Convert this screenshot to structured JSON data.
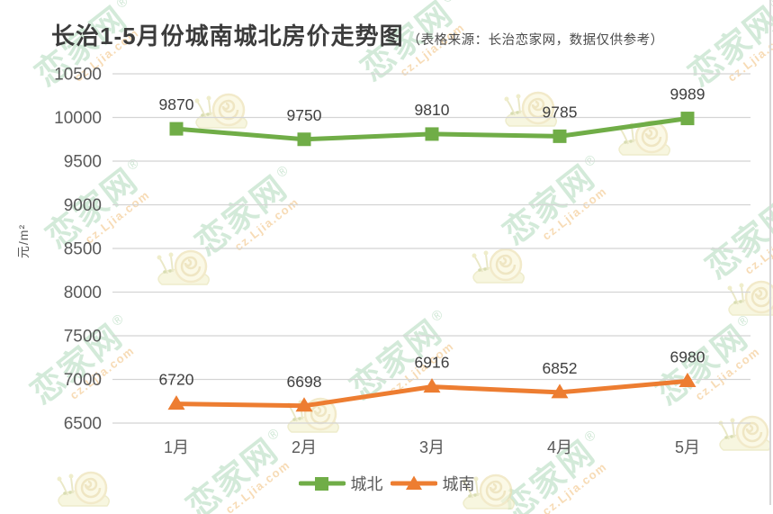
{
  "title": "长治1-5月份城南城北房价走势图",
  "subtitle": "（表格来源：长治恋家网，数据仅供参考）",
  "watermark": {
    "logo_text": "恋家网",
    "registered": "®",
    "site": "cz.Ljia.com"
  },
  "chart_data": {
    "type": "line",
    "categories": [
      "1月",
      "2月",
      "3月",
      "4月",
      "5月"
    ],
    "series": [
      {
        "name": "城北",
        "values": [
          9870,
          9750,
          9810,
          9785,
          9989
        ],
        "color": "#70ad47",
        "marker": "square"
      },
      {
        "name": "城南",
        "values": [
          6720,
          6698,
          6916,
          6852,
          6980
        ],
        "color": "#ed7d31",
        "marker": "triangle"
      }
    ],
    "xlabel": "",
    "ylabel": "元/m²",
    "ylim": [
      6500,
      10500
    ],
    "ytick_step": 500,
    "grid": true,
    "grid_color": "#d4d4d4",
    "tick_color": "#595959",
    "data_label_color": "#3f3f3f",
    "legend_position": "bottom"
  }
}
